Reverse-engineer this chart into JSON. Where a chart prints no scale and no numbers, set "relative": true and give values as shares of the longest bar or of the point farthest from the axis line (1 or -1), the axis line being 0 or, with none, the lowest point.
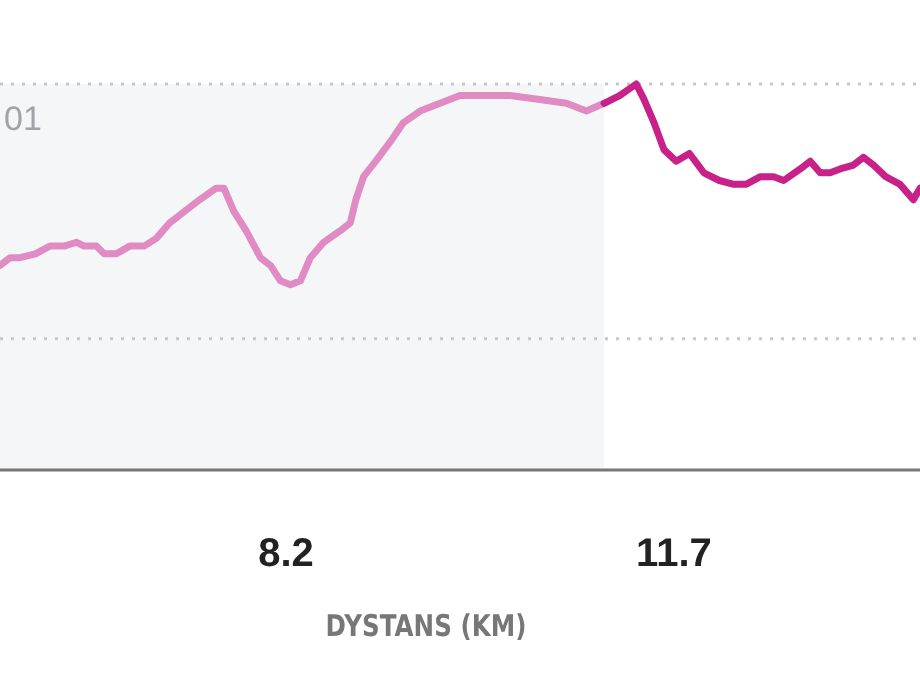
{
  "chart_data": {
    "type": "line",
    "relative": true,
    "xlabel": "DYSTANS (KM)",
    "xlim": [
      5.62,
      13.92
    ],
    "xticks": [
      8.2,
      11.7
    ],
    "line_style": "solid",
    "marker": "none",
    "grid": false,
    "bands": [
      {
        "axis": "x",
        "from": 5.62,
        "to": 11.07,
        "color": "#f5f6f8"
      }
    ],
    "ref_lines": [
      {
        "axis": "y",
        "value": 1,
        "label": "01",
        "color": "#c8c8cc",
        "line_style": "dotted"
      },
      {
        "axis": "y",
        "value": 0.34,
        "color": "#c8c8cc",
        "line_style": "dotted"
      }
    ],
    "series": [
      {
        "color": "#e08bc4",
        "x": [
          5.62,
          5.71,
          5.8,
          5.94,
          6.07,
          6.2,
          6.31,
          6.38,
          6.49,
          6.56,
          6.67,
          6.79,
          6.92,
          7.03,
          7.15,
          7.33,
          7.42,
          7.57,
          7.64,
          7.73,
          7.84,
          7.97,
          8.06,
          8.15,
          8.24,
          8.33,
          8.42,
          8.54,
          8.69,
          8.78,
          8.83,
          8.9,
          9.01,
          9.14,
          9.26,
          9.41,
          9.59,
          9.77,
          9.95,
          10.22,
          10.49,
          10.73,
          10.91,
          11.07
        ],
        "values": [
          0.53,
          0.55,
          0.55,
          0.56,
          0.58,
          0.58,
          0.59,
          0.58,
          0.58,
          0.56,
          0.56,
          0.58,
          0.58,
          0.6,
          0.64,
          0.68,
          0.7,
          0.73,
          0.73,
          0.67,
          0.62,
          0.55,
          0.53,
          0.49,
          0.48,
          0.49,
          0.55,
          0.59,
          0.62,
          0.64,
          0.7,
          0.76,
          0.8,
          0.85,
          0.9,
          0.93,
          0.95,
          0.97,
          0.97,
          0.97,
          0.96,
          0.95,
          0.93,
          0.95
        ]
      },
      {
        "color": "#c8218a",
        "x": [
          11.07,
          11.21,
          11.36,
          11.43,
          11.52,
          11.61,
          11.72,
          11.84,
          11.97,
          12.11,
          12.24,
          12.35,
          12.48,
          12.6,
          12.69,
          12.84,
          12.93,
          13.02,
          13.11,
          13.2,
          13.32,
          13.41,
          13.5,
          13.61,
          13.74,
          13.86,
          13.92
        ],
        "values": [
          0.95,
          0.97,
          1.0,
          0.96,
          0.9,
          0.83,
          0.8,
          0.82,
          0.77,
          0.75,
          0.74,
          0.74,
          0.76,
          0.76,
          0.75,
          0.78,
          0.8,
          0.77,
          0.77,
          0.78,
          0.79,
          0.81,
          0.79,
          0.76,
          0.74,
          0.7,
          0.73
        ]
      }
    ]
  }
}
